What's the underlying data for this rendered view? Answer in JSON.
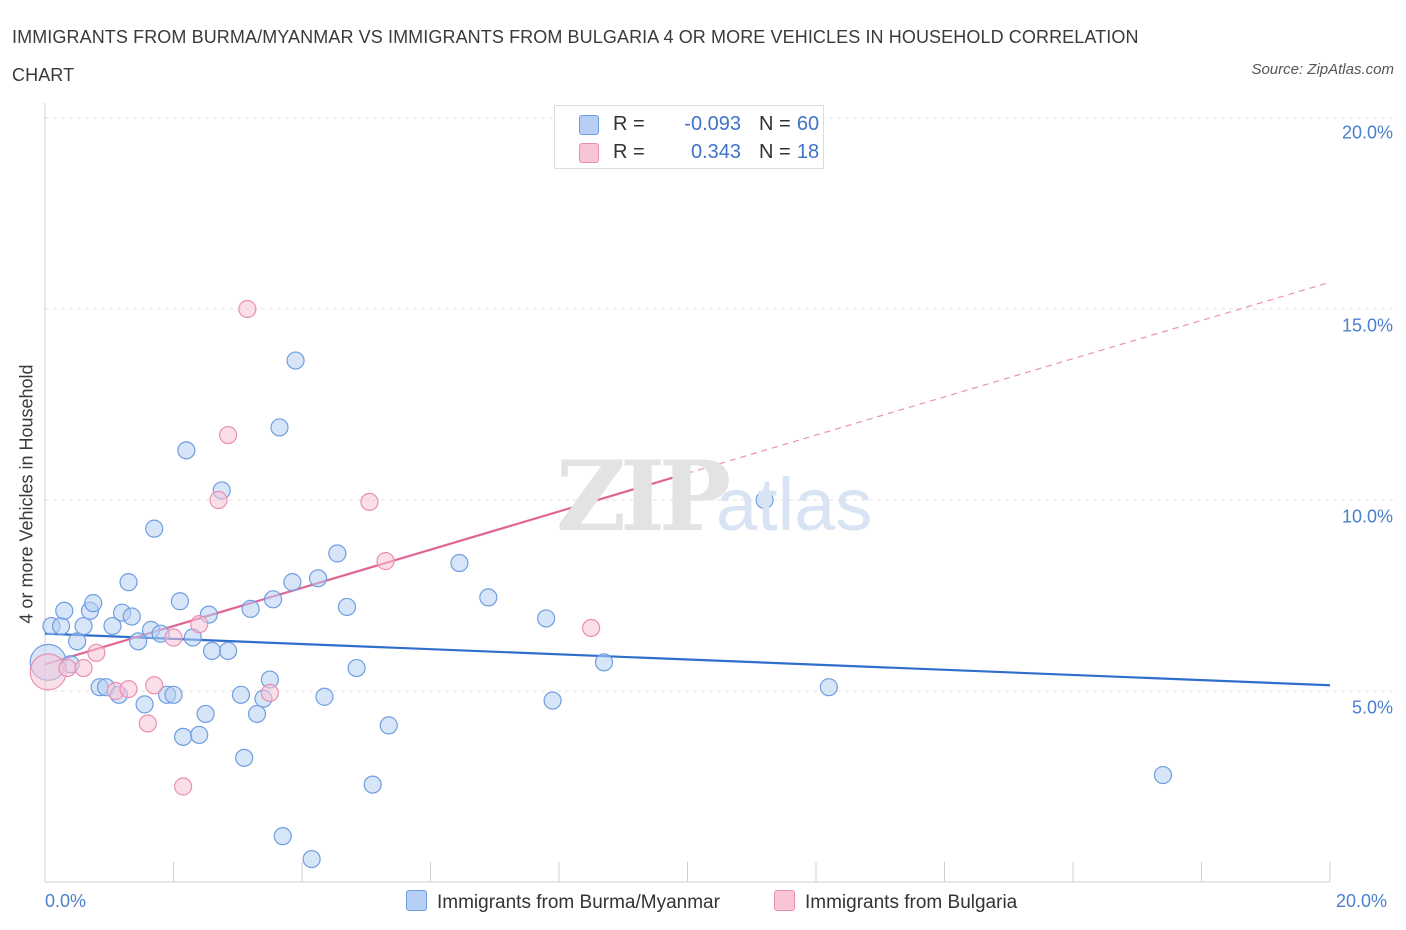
{
  "header": {
    "title": "IMMIGRANTS FROM BURMA/MYANMAR VS IMMIGRANTS FROM BULGARIA 4 OR MORE VEHICLES IN HOUSEHOLD CORRELATION CHART",
    "source": "Source: ZipAtlas.com"
  },
  "watermark": {
    "zip": "ZIP",
    "atlas": "atlas"
  },
  "legend_stats": {
    "rows": [
      {
        "r_label": "R =",
        "r_value": "-0.093",
        "n_label": "N =",
        "n_value": "60"
      },
      {
        "r_label": "R =",
        "r_value": "0.343",
        "n_label": "N =",
        "n_value": "18"
      }
    ]
  },
  "colors": {
    "blue_fill": "#b7cff4",
    "blue_stroke": "#6f9ee0",
    "blue_line": "#2f6fcb",
    "pink_fill": "#f7c5d5",
    "pink_stroke": "#ea8fb0",
    "pink_line": "#e06495",
    "grid": "#e1e1e1",
    "tick_text": "#4a7fd0"
  },
  "chart_data": {
    "type": "scatter",
    "title": "IMMIGRANTS FROM BURMA/MYANMAR VS IMMIGRANTS FROM BULGARIA 4 OR MORE VEHICLES IN HOUSEHOLD CORRELATION CHART",
    "xlabel": "",
    "ylabel": "4 or more Vehicles in Household",
    "xlim": [
      0,
      20
    ],
    "ylim": [
      0,
      20
    ],
    "x_ticks": [
      {
        "value": 0,
        "label": "0.0%"
      },
      {
        "value": 20,
        "label": "20.0%"
      }
    ],
    "y_ticks": [
      {
        "value": 5,
        "label": "5.0%"
      },
      {
        "value": 10,
        "label": "10.0%"
      },
      {
        "value": 15,
        "label": "15.0%"
      },
      {
        "value": 20,
        "label": "20.0%"
      }
    ],
    "grid": true,
    "legend_position": "bottom",
    "series": [
      {
        "name": "Immigrants from Burma/Myanmar",
        "color": "blue",
        "r": -0.093,
        "n": 60,
        "trend": {
          "x": [
            0,
            20
          ],
          "y": [
            6.5,
            5.15
          ],
          "dashed_x": null
        },
        "points": [
          {
            "x": 0.05,
            "y": 5.75,
            "big": true
          },
          {
            "x": 0.1,
            "y": 6.7
          },
          {
            "x": 0.25,
            "y": 6.7
          },
          {
            "x": 0.3,
            "y": 7.1
          },
          {
            "x": 0.4,
            "y": 5.7
          },
          {
            "x": 0.5,
            "y": 6.3
          },
          {
            "x": 0.6,
            "y": 6.7
          },
          {
            "x": 0.7,
            "y": 7.1
          },
          {
            "x": 0.75,
            "y": 7.3
          },
          {
            "x": 0.85,
            "y": 5.1
          },
          {
            "x": 0.95,
            "y": 5.1
          },
          {
            "x": 1.05,
            "y": 6.7
          },
          {
            "x": 1.15,
            "y": 4.9
          },
          {
            "x": 1.2,
            "y": 7.05
          },
          {
            "x": 1.3,
            "y": 7.85
          },
          {
            "x": 1.35,
            "y": 6.95
          },
          {
            "x": 1.45,
            "y": 6.3
          },
          {
            "x": 1.55,
            "y": 4.65
          },
          {
            "x": 1.65,
            "y": 6.6
          },
          {
            "x": 1.7,
            "y": 9.25
          },
          {
            "x": 1.8,
            "y": 6.5
          },
          {
            "x": 1.9,
            "y": 4.9
          },
          {
            "x": 2.0,
            "y": 4.9
          },
          {
            "x": 2.1,
            "y": 7.35
          },
          {
            "x": 2.15,
            "y": 3.8
          },
          {
            "x": 2.2,
            "y": 11.3
          },
          {
            "x": 2.3,
            "y": 6.4
          },
          {
            "x": 2.4,
            "y": 3.85
          },
          {
            "x": 2.5,
            "y": 4.4
          },
          {
            "x": 2.6,
            "y": 6.05
          },
          {
            "x": 2.55,
            "y": 7.0
          },
          {
            "x": 2.75,
            "y": 10.25
          },
          {
            "x": 2.85,
            "y": 6.05
          },
          {
            "x": 3.05,
            "y": 4.9
          },
          {
            "x": 3.1,
            "y": 3.25
          },
          {
            "x": 3.2,
            "y": 7.15
          },
          {
            "x": 3.3,
            "y": 4.4
          },
          {
            "x": 3.4,
            "y": 4.8
          },
          {
            "x": 3.5,
            "y": 5.3
          },
          {
            "x": 3.55,
            "y": 7.4
          },
          {
            "x": 3.65,
            "y": 11.9
          },
          {
            "x": 3.7,
            "y": 1.2
          },
          {
            "x": 3.85,
            "y": 7.85
          },
          {
            "x": 3.9,
            "y": 13.65
          },
          {
            "x": 4.15,
            "y": 0.6
          },
          {
            "x": 4.25,
            "y": 7.95
          },
          {
            "x": 4.35,
            "y": 4.85
          },
          {
            "x": 4.55,
            "y": 8.6
          },
          {
            "x": 4.7,
            "y": 7.2
          },
          {
            "x": 4.85,
            "y": 5.6
          },
          {
            "x": 5.1,
            "y": 2.55
          },
          {
            "x": 5.35,
            "y": 4.1
          },
          {
            "x": 6.45,
            "y": 8.35
          },
          {
            "x": 6.9,
            "y": 7.45
          },
          {
            "x": 7.8,
            "y": 6.9
          },
          {
            "x": 7.9,
            "y": 4.75
          },
          {
            "x": 8.7,
            "y": 5.75
          },
          {
            "x": 11.2,
            "y": 10.0
          },
          {
            "x": 12.2,
            "y": 5.1
          },
          {
            "x": 17.4,
            "y": 2.8
          }
        ]
      },
      {
        "name": "Immigrants from Bulgaria",
        "color": "pink",
        "r": 0.343,
        "n": 18,
        "trend": {
          "x": [
            0,
            10.0
          ],
          "y": [
            5.7,
            10.7
          ],
          "dashed_x": [
            10.0,
            20.0
          ]
        },
        "points": [
          {
            "x": 0.05,
            "y": 5.5,
            "big": true
          },
          {
            "x": 0.35,
            "y": 5.6
          },
          {
            "x": 0.6,
            "y": 5.6
          },
          {
            "x": 0.8,
            "y": 6.0
          },
          {
            "x": 1.1,
            "y": 5.0
          },
          {
            "x": 1.3,
            "y": 5.05
          },
          {
            "x": 1.6,
            "y": 4.15
          },
          {
            "x": 1.7,
            "y": 5.15
          },
          {
            "x": 2.0,
            "y": 6.4
          },
          {
            "x": 2.15,
            "y": 2.5
          },
          {
            "x": 2.4,
            "y": 6.75
          },
          {
            "x": 2.7,
            "y": 10.0
          },
          {
            "x": 2.85,
            "y": 11.7
          },
          {
            "x": 3.15,
            "y": 15.0
          },
          {
            "x": 3.5,
            "y": 4.95
          },
          {
            "x": 5.05,
            "y": 9.95
          },
          {
            "x": 5.3,
            "y": 8.4
          },
          {
            "x": 8.5,
            "y": 6.65
          }
        ]
      }
    ]
  }
}
